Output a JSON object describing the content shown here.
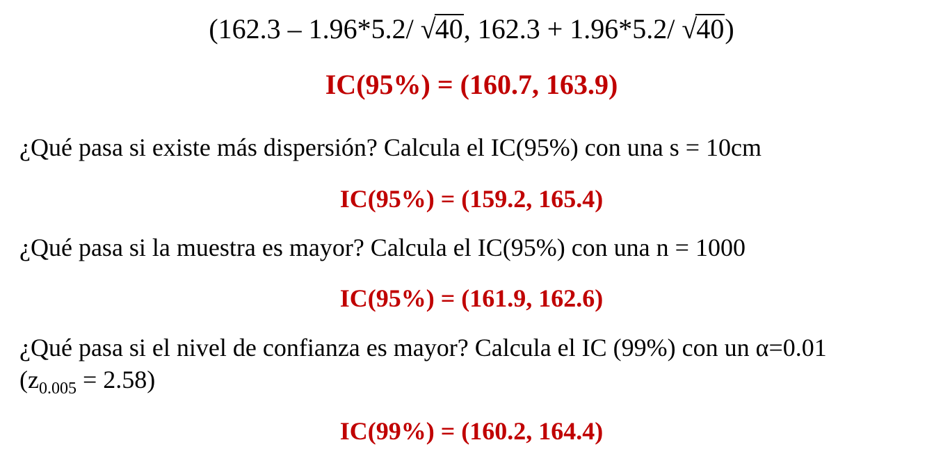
{
  "formula": {
    "open": "(162.3 – 1.96*5.2/ ",
    "sqrt_symbol": "√",
    "radicand_1": "40",
    "middle": ", 162.3 + 1.96*5.2/ ",
    "radicand_2": "40",
    "close": ")"
  },
  "result_1": "IC(95%) = (160.7, 163.9)",
  "question_1": "¿Qué pasa si existe más dispersión? Calcula el IC(95%) con una s = 10cm",
  "result_2": "IC(95%) = (159.2, 165.4)",
  "question_2": "¿Qué pasa si la muestra es mayor? Calcula el IC(95%) con una n = 1000",
  "result_3": "IC(95%) = (161.9, 162.6)",
  "question_3": {
    "line1": "¿Qué pasa si el nivel de confianza es mayor? Calcula el IC (99%) con un α=0.01",
    "line2_open": "(z",
    "line2_sub": "0.005",
    "line2_rest": " = 2.58)"
  },
  "result_4": "IC(99%) = (160.2, 164.4)",
  "colors": {
    "result": "#c00000",
    "text": "#000000"
  }
}
